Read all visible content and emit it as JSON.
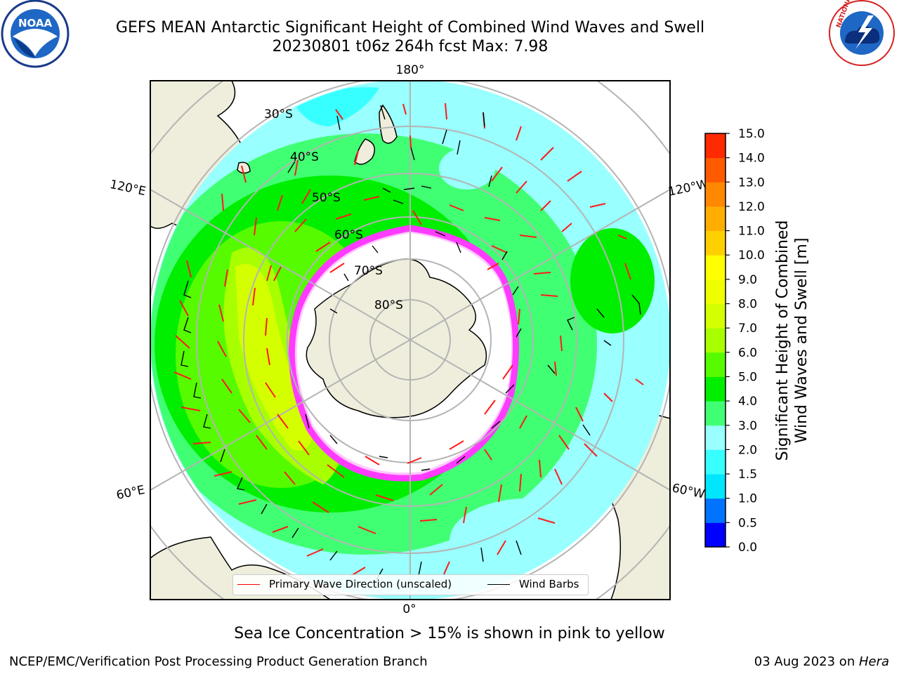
{
  "header": {
    "title_line1": "GEFS MEAN Antarctic Significant Height of Combined Wind Waves and Swell",
    "title_line2": "20230801 t06z 264h fcst   Max: 7.98"
  },
  "logos": {
    "left": {
      "icon": "noaa-logo",
      "text": "NOAA"
    },
    "right": {
      "icon": "nws-logo",
      "text": "NATIONAL WEATHER SERVICE"
    }
  },
  "map": {
    "projection": "south-polar-stereographic",
    "longitude_labels": [
      "180°",
      "120°E",
      "120°W",
      "60°E",
      "60°W",
      "0°"
    ],
    "latitude_labels": [
      "30°S",
      "40°S",
      "50°S",
      "60°S",
      "70°S",
      "80°S"
    ],
    "colors": {
      "land": "#efeedc",
      "ice_edge": "#ff3bff",
      "arrow": "#ff1a1a",
      "barb": "#000000",
      "grid": "#b4b4b4"
    }
  },
  "legend": {
    "wave_direction": {
      "label": "Primary Wave Direction (unscaled)",
      "color": "#ff0000"
    },
    "wind_barbs": {
      "label": "Wind Barbs",
      "color": "#000000"
    }
  },
  "colorbar": {
    "title_line1": "Significant Height of Combined",
    "title_line2": "Wind Waves and Swell [m]",
    "ticks": [
      "0.0",
      "0.5",
      "1.0",
      "1.5",
      "2.0",
      "3.0",
      "4.0",
      "5.0",
      "6.0",
      "7.0",
      "8.0",
      "9.0",
      "10.0",
      "11.0",
      "12.0",
      "13.0",
      "14.0",
      "15.0"
    ],
    "colors": [
      "#0000ff",
      "#0073ff",
      "#00e6ff",
      "#38ffff",
      "#99ffff",
      "#41ff73",
      "#00ee00",
      "#56fb00",
      "#a8ff00",
      "#d4ff00",
      "#f0ff00",
      "#ffff00",
      "#ffd000",
      "#ffae00",
      "#ff8800",
      "#ff5a00",
      "#ff2a00"
    ]
  },
  "footer": {
    "note": "Sea Ice Concentration > 15% is shown in pink to yellow",
    "credit": "NCEP/EMC/Verification Post Processing Product Generation Branch",
    "date": "03 Aug 2023 on ",
    "machine": "Hera"
  }
}
